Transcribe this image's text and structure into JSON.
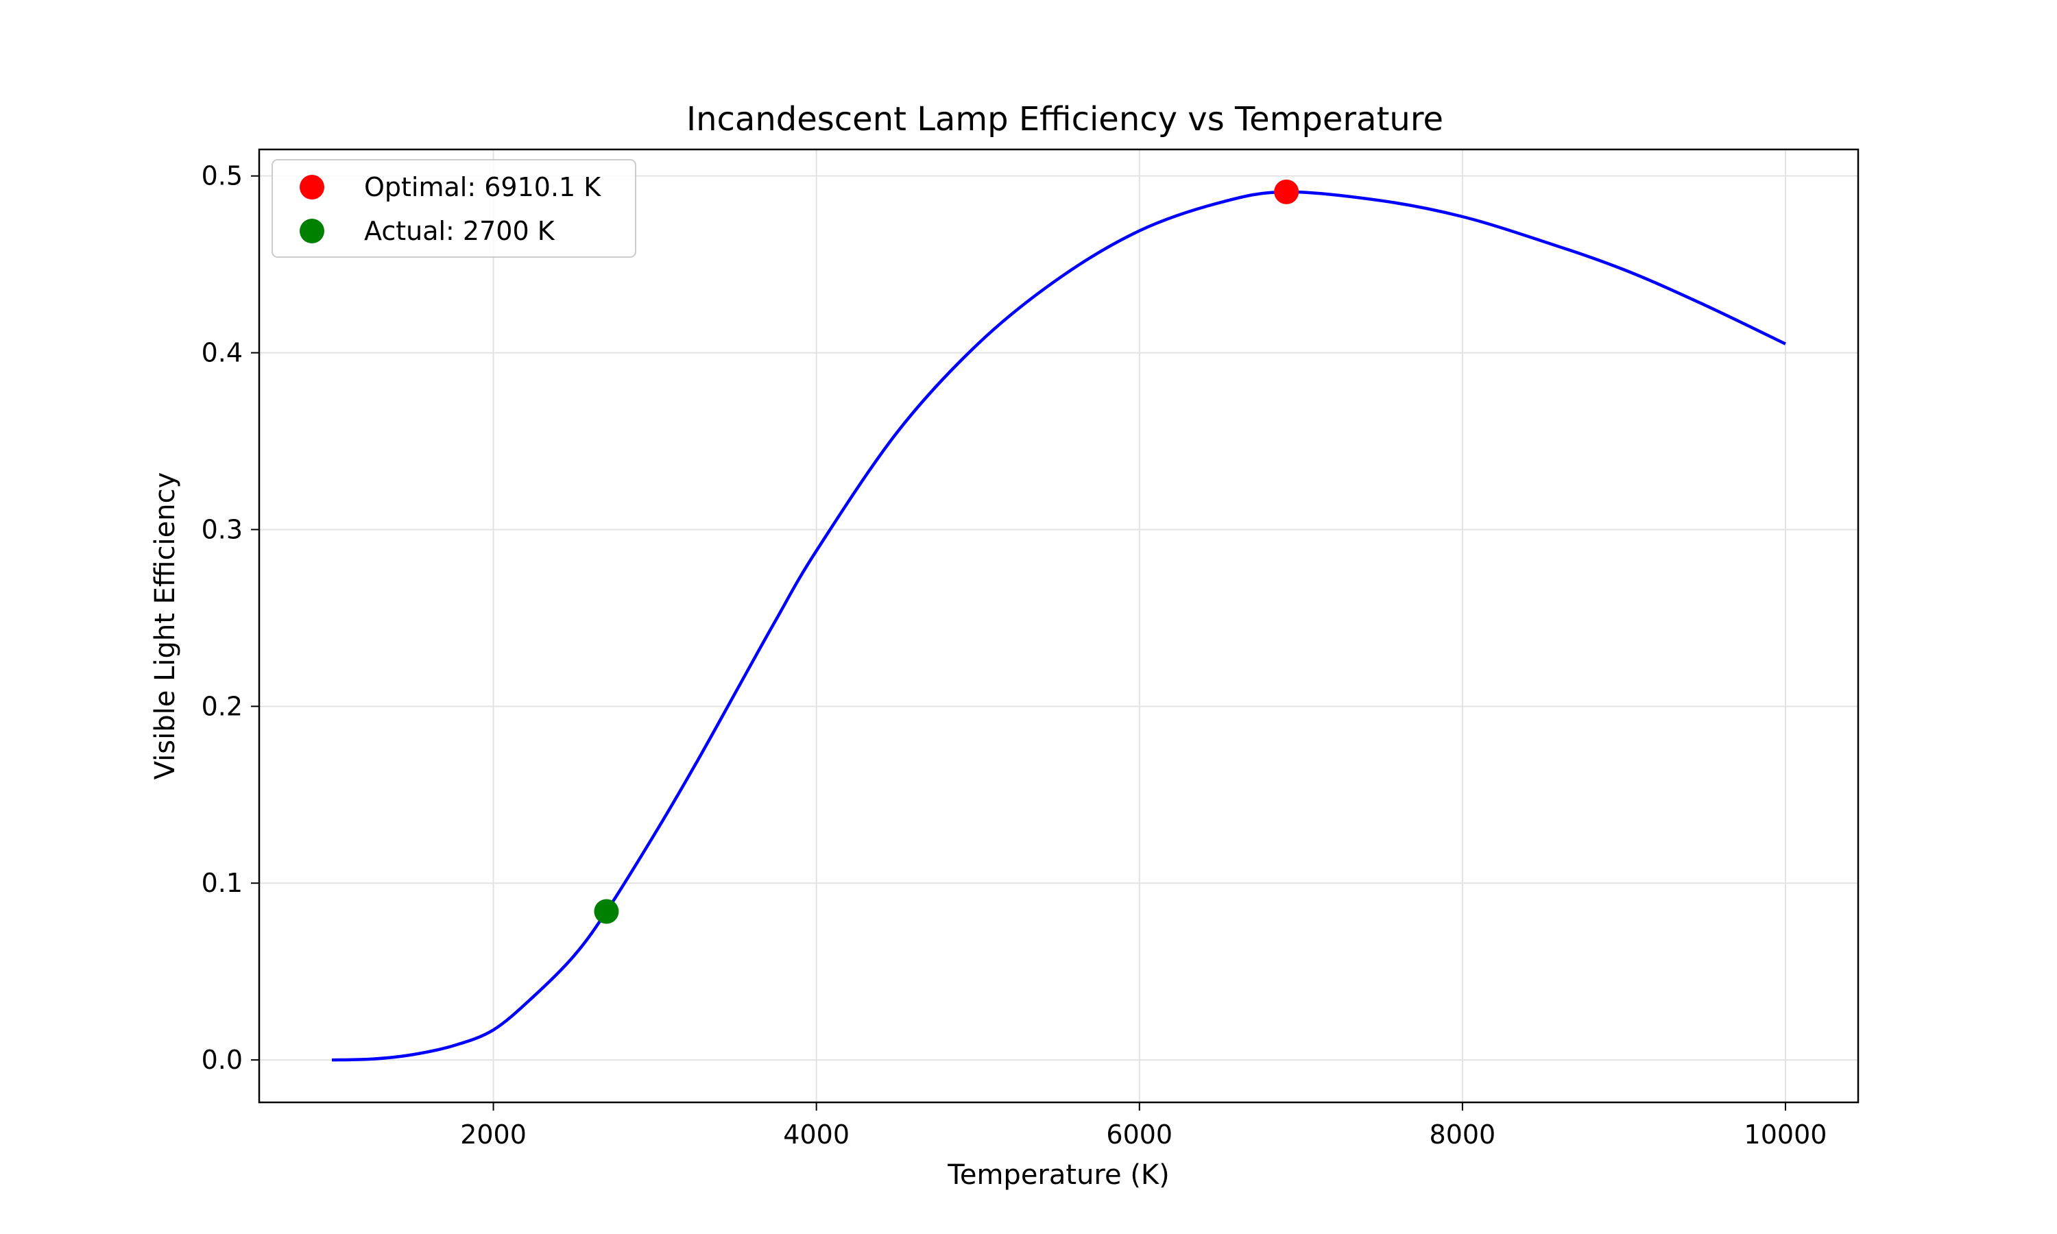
{
  "chart_data": {
    "type": "line",
    "title": "Incandescent Lamp Efficiency vs Temperature",
    "xlabel": "Temperature (K)",
    "ylabel": "Visible Light Efficiency",
    "xlim": [
      550,
      10450
    ],
    "ylim": [
      -0.024,
      0.515
    ],
    "x_ticks": [
      2000,
      4000,
      6000,
      8000,
      10000
    ],
    "x_tick_labels": [
      "2000",
      "4000",
      "6000",
      "8000",
      "10000"
    ],
    "y_ticks": [
      0.0,
      0.1,
      0.2,
      0.3,
      0.4,
      0.5
    ],
    "y_tick_labels": [
      "0.0",
      "0.1",
      "0.2",
      "0.3",
      "0.4",
      "0.5"
    ],
    "grid": true,
    "legend_position": "upper-left",
    "series": [
      {
        "color": "#0000ff",
        "x": [
          1000,
          1250,
          1500,
          1750,
          2000,
          2250,
          2500,
          2700,
          3000,
          3250,
          3500,
          3750,
          4000,
          4500,
          5000,
          5500,
          6000,
          6500,
          6910.1,
          7500,
          8000,
          8500,
          9000,
          9500,
          10000
        ],
        "y": [
          0.0,
          0.0005,
          0.003,
          0.008,
          0.017,
          0.036,
          0.059,
          0.084,
          0.128,
          0.167,
          0.208,
          0.249,
          0.288,
          0.355,
          0.405,
          0.442,
          0.469,
          0.485,
          0.491,
          0.486,
          0.477,
          0.463,
          0.447,
          0.427,
          0.405
        ]
      }
    ],
    "points": [
      {
        "label": "Optimal: 6910.1 K",
        "x": 6910.1,
        "y": 0.491,
        "color": "#ff0000"
      },
      {
        "label": "Actual: 2700 K",
        "x": 2700,
        "y": 0.084,
        "color": "#008000"
      }
    ]
  }
}
